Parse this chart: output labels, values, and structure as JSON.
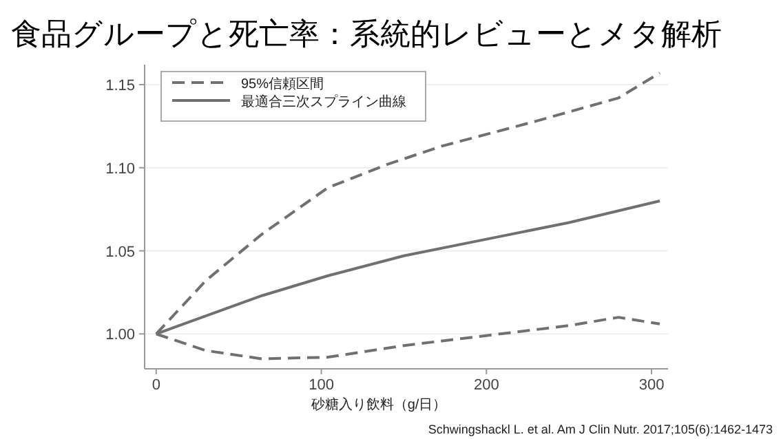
{
  "chart_data": {
    "type": "line",
    "title": "食品グループと死亡率：系統的レビューとメタ解析",
    "xlabel": "砂糖入り飲料（g/日）",
    "annotations": [
      "Schwingshackl L. et al. Am J Clin Nutr. 2017;105(6):1462-1473"
    ],
    "xlim": [
      -7,
      310
    ],
    "ylim": [
      0.979,
      1.162
    ],
    "xticks": [
      0,
      100,
      200,
      300
    ],
    "yticks": [
      {
        "value": 1,
        "label": "1.00"
      },
      {
        "value": 1.05,
        "label": "1.05"
      },
      {
        "value": 1.1,
        "label": "1.10"
      },
      {
        "value": 1.15,
        "label": "1.15"
      }
    ],
    "grid": "y",
    "legend": "top left",
    "marker": "none",
    "series": [
      {
        "name": "95%信頼区間",
        "color": "#707070",
        "line_style": "dashed",
        "x": [
          0,
          30,
          64,
          104,
          140,
          173,
          230,
          280,
          305
        ],
        "values": [
          1.0,
          1.032,
          1.06,
          1.088,
          1.102,
          1.113,
          1.128,
          1.142,
          1.157
        ]
      },
      {
        "name": "最適合三次スプライン曲線",
        "color": "#707070",
        "line_style": "solid",
        "x": [
          0,
          64,
          104,
          150,
          200,
          250,
          305
        ],
        "values": [
          1.0,
          1.023,
          1.035,
          1.047,
          1.057,
          1.067,
          1.08
        ]
      },
      {
        "color": "#707070",
        "line_style": "dashed",
        "x": [
          0,
          30,
          64,
          104,
          150,
          200,
          250,
          280,
          305
        ],
        "values": [
          1.0,
          0.99,
          0.985,
          0.986,
          0.993,
          0.999,
          1.005,
          1.01,
          1.006
        ]
      }
    ]
  }
}
